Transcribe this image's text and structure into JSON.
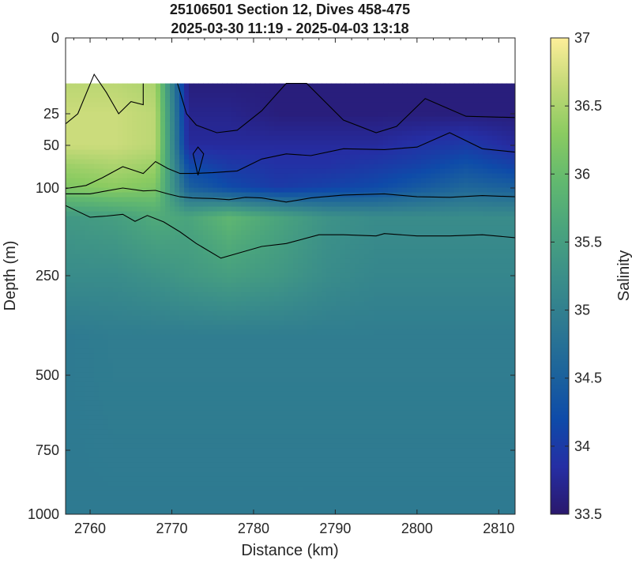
{
  "chart_data": {
    "type": "heatmap",
    "title": "25106501 Section 12, Dives 458-475",
    "subtitle": "2025-03-30 11:19 - 2025-04-03 13:18",
    "xlabel": "Distance (km)",
    "ylabel": "Depth (m)",
    "colorbar_label": "Salinity",
    "xlim": [
      2757,
      2812
    ],
    "ylim_depth": [
      0,
      1000
    ],
    "depth_axis_scale": "stretched (shallow depths expanded)",
    "x_ticks": [
      2760,
      2770,
      2780,
      2790,
      2800,
      2810
    ],
    "x_tick_labels": [
      "2760",
      "2770",
      "2780",
      "2790",
      "2800",
      "2810"
    ],
    "y_ticks": [
      0,
      25,
      50,
      100,
      250,
      500,
      750,
      1000
    ],
    "y_tick_labels": [
      "0",
      "25",
      "50",
      "100",
      "250",
      "500",
      "750",
      "1000"
    ],
    "colorbar_range": [
      33.5,
      37
    ],
    "colorbar_ticks": [
      33.5,
      34,
      34.5,
      35,
      35.5,
      36,
      36.5,
      37
    ],
    "colorbar_tick_labels": [
      "33.5",
      "34",
      "34.5",
      "35",
      "35.5",
      "36",
      "36.5",
      "37"
    ],
    "colormap": "haline",
    "colormap_stops": [
      "#2a186c",
      "#252ea4",
      "#0e4ba9",
      "#1d649b",
      "#2e7a91",
      "#3b8f89",
      "#4aa47d",
      "#62b96f",
      "#8bcb61",
      "#c3d977",
      "#fdee99"
    ],
    "data_top_depth_m": 15,
    "columns_distance_km": [
      2757,
      2763,
      2768,
      2772,
      2777,
      2783,
      2789,
      2795,
      2800,
      2806,
      2812
    ],
    "rows_depth_m": [
      15,
      25,
      50,
      75,
      100,
      150,
      250,
      400,
      1000
    ],
    "salinity": [
      [
        36.6,
        36.6,
        36.5,
        33.6,
        33.6,
        33.6,
        33.6,
        33.6,
        33.6,
        33.6,
        33.6
      ],
      [
        36.7,
        36.7,
        36.6,
        33.7,
        33.7,
        33.6,
        33.6,
        33.6,
        33.6,
        33.6,
        33.6
      ],
      [
        36.7,
        36.7,
        36.6,
        33.8,
        33.8,
        33.8,
        33.8,
        33.8,
        33.9,
        34.0,
        33.8
      ],
      [
        36.4,
        36.5,
        36.4,
        34.2,
        34.0,
        33.9,
        33.9,
        34.0,
        34.1,
        34.3,
        34.1
      ],
      [
        36.2,
        36.3,
        36.2,
        34.5,
        34.2,
        34.0,
        34.1,
        34.2,
        34.4,
        34.6,
        34.5
      ],
      [
        35.4,
        35.5,
        35.7,
        35.6,
        35.9,
        35.6,
        35.3,
        35.2,
        35.2,
        35.2,
        35.2
      ],
      [
        35.2,
        35.2,
        35.3,
        35.4,
        35.5,
        35.4,
        35.2,
        35.1,
        35.1,
        35.1,
        35.1
      ],
      [
        34.9,
        34.95,
        34.95,
        34.95,
        34.95,
        34.95,
        34.95,
        34.95,
        34.95,
        34.95,
        34.95
      ],
      [
        34.9,
        34.9,
        34.9,
        34.9,
        34.9,
        34.9,
        34.9,
        34.9,
        34.9,
        34.9,
        34.9
      ]
    ],
    "contour_lines": [
      {
        "x": [
          2757,
          2758.5,
          2760.5,
          2762,
          2763.5,
          2765,
          2766.5,
          2766.5
        ],
        "y": [
          33,
          25,
          12,
          18,
          25,
          21,
          22,
          15
        ]
      },
      {
        "x": [
          2770.7,
          2771.8,
          2773,
          2775.5,
          2778,
          2781,
          2784,
          2786.5,
          2791,
          2795,
          2797.5,
          2801,
          2806,
          2812
        ],
        "y": [
          15,
          25,
          34,
          40,
          38,
          24,
          15,
          15,
          30,
          40,
          35,
          20,
          27,
          28
        ]
      },
      {
        "x": [
          2757,
          2759.5,
          2761.5,
          2764,
          2766.5,
          2768,
          2769.5,
          2771,
          2772.5,
          2775,
          2778,
          2781,
          2784,
          2787,
          2791,
          2796,
          2800,
          2804,
          2808,
          2812
        ],
        "y": [
          101,
          97,
          88,
          75,
          83,
          69,
          77,
          83,
          83,
          82,
          80,
          66,
          60,
          62,
          54,
          55,
          52,
          40,
          54,
          58
        ]
      },
      {
        "x": [
          2757,
          2760,
          2762,
          2764,
          2766.5,
          2768,
          2769.5,
          2771,
          2772.5,
          2775,
          2777,
          2779,
          2781,
          2784,
          2787,
          2791,
          2796,
          2800,
          2804,
          2808,
          2812
        ],
        "y": [
          110,
          110,
          105,
          100,
          105,
          104,
          110,
          115,
          117,
          118,
          120,
          116,
          117,
          124,
          117,
          112,
          110,
          115,
          116,
          113,
          115
        ]
      },
      {
        "x": [
          2757,
          2760,
          2762,
          2764,
          2765.5,
          2767,
          2769,
          2771,
          2773,
          2776,
          2778,
          2781,
          2784,
          2788,
          2791,
          2795,
          2796,
          2800,
          2804,
          2808,
          2812
        ],
        "y": [
          130,
          150,
          148,
          145,
          157,
          147,
          158,
          175,
          195,
          220,
          212,
          200,
          195,
          180,
          180,
          182,
          178,
          182,
          182,
          180,
          185
        ]
      },
      {
        "x": [
          2772.6,
          2773.2,
          2773.9,
          2773.2,
          2772.6
        ],
        "y": [
          60,
          52,
          60,
          85,
          60
        ]
      }
    ]
  }
}
